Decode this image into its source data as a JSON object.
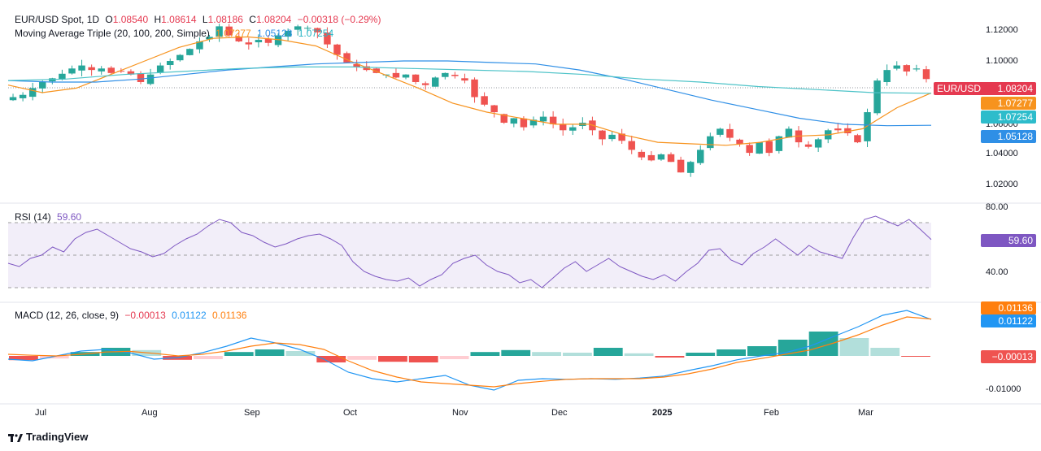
{
  "legend": {
    "symbol": "EUR/USD Spot, 1D",
    "o_label": "O",
    "o_val": "1.08540",
    "h_label": "H",
    "h_val": "1.08614",
    "l_label": "L",
    "l_val": "1.08186",
    "c_label": "C",
    "c_val": "1.08204",
    "change": "−0.00318 (−0.29%)",
    "ma_title": "Moving Average Triple (20, 100, 200, Simple)",
    "ma20_val": "1.07277",
    "ma100_val": "1.05128",
    "ma200_val": "1.07254",
    "rsi_title": "RSI (14)",
    "rsi_val": "59.60",
    "macd_title": "MACD (12, 26, close, 9)",
    "macd_hist_val": "−0.00013",
    "macd_line_val": "0.01122",
    "macd_signal_val": "0.01136"
  },
  "price_tags": {
    "symbol_tag": "EUR/USD",
    "close": "1.08204",
    "ma20": "1.07277",
    "ma200": "1.07254",
    "ma100": "1.05128",
    "rsi": "59.60",
    "macd_signal": "0.01136",
    "macd_line": "0.01122",
    "macd_hist": "−0.00013"
  },
  "colors": {
    "up": "#26a69a",
    "down": "#ef5350",
    "ma20": "#f7931e",
    "ma100": "#2f8fe6",
    "ma200": "#4ec3c8",
    "rsi": "#7e57c2",
    "macd": "#2196f3",
    "signal": "#ff7f0e",
    "hist_up_strong": "#26a69a",
    "hist_up_weak": "#b2dfdb",
    "hist_dn_strong": "#ef5350",
    "hist_dn_weak": "#ffcdd2"
  },
  "footer": {
    "brand": "TradingView"
  },
  "chart_data": [
    {
      "type": "candlestick",
      "title": "EUR/USD Spot, 1D",
      "ylim": [
        1.005,
        1.128
      ],
      "yticks": [
        "1.12000",
        "1.10000",
        "1.06000",
        "1.04000",
        "1.02000"
      ],
      "x_ticks": [
        "Jul",
        "Aug",
        "Sep",
        "Oct",
        "Nov",
        "Dec",
        "2025",
        "Feb",
        "Mar"
      ],
      "last_close": 1.08204,
      "close_path": [
        1.07,
        1.0715,
        1.076,
        1.08,
        1.0825,
        1.0855,
        1.089,
        1.091,
        1.088,
        1.089,
        1.086,
        1.087,
        1.085,
        1.08,
        1.085,
        1.091,
        1.094,
        1.098,
        1.102,
        1.107,
        1.11,
        1.117,
        1.111,
        1.107,
        1.105,
        1.108,
        1.106,
        1.111,
        1.114,
        1.117,
        1.116,
        1.113,
        1.105,
        1.098,
        1.093,
        1.09,
        1.088,
        1.086,
        1.085,
        1.083,
        1.085,
        1.08,
        1.078,
        1.083,
        1.086,
        1.084,
        1.081,
        1.07,
        1.065,
        1.06,
        1.053,
        1.056,
        1.05,
        1.055,
        1.057,
        1.052,
        1.048,
        1.05,
        1.053,
        1.048,
        1.042,
        1.045,
        1.041,
        1.035,
        1.03,
        1.028,
        1.032,
        1.027,
        1.02,
        1.027,
        1.035,
        1.044,
        1.049,
        1.043,
        1.039,
        1.033,
        1.04,
        1.033,
        1.044,
        1.049,
        1.04,
        1.037,
        1.042,
        1.048,
        1.048,
        1.046,
        1.04,
        1.06,
        1.081,
        1.088,
        1.091,
        1.087,
        1.089,
        1.082
      ],
      "series": [
        {
          "name": "MA 20",
          "values": [
            1.078,
            1.073,
            1.076,
            1.085,
            1.094,
            1.103,
            1.109,
            1.11,
            1.108,
            1.104,
            1.094,
            1.085,
            1.076,
            1.066,
            1.06,
            1.056,
            1.052,
            1.052,
            1.045,
            1.04,
            1.039,
            1.038,
            1.04,
            1.044,
            1.045,
            1.049,
            1.063,
            1.07277
          ]
        },
        {
          "name": "MA 100",
          "values": [
            1.081,
            1.08,
            1.08,
            1.082,
            1.085,
            1.088,
            1.09,
            1.092,
            1.093,
            1.094,
            1.094,
            1.093,
            1.092,
            1.088,
            1.082,
            1.075,
            1.068,
            1.062,
            1.056,
            1.052,
            1.051,
            1.05128
          ]
        },
        {
          "name": "MA 200",
          "values": [
            1.081,
            1.082,
            1.085,
            1.087,
            1.089,
            1.09,
            1.09,
            1.089,
            1.088,
            1.087,
            1.085,
            1.082,
            1.08,
            1.077,
            1.075,
            1.073,
            1.07254
          ]
        }
      ]
    },
    {
      "type": "line",
      "title": "RSI (14)",
      "ylim": [
        22,
        82
      ],
      "yticks": [
        "80.00",
        "40.00"
      ],
      "levels": [
        70,
        50,
        30
      ],
      "series": [
        {
          "name": "RSI",
          "values": [
            45,
            43,
            48,
            50,
            55,
            52,
            60,
            64,
            66,
            62,
            58,
            54,
            52,
            49,
            51,
            56,
            60,
            63,
            68,
            72,
            70,
            64,
            62,
            58,
            55,
            57,
            60,
            62,
            63,
            60,
            56,
            46,
            40,
            37,
            35,
            34,
            36,
            31,
            35,
            38,
            45,
            48,
            50,
            44,
            40,
            38,
            33,
            35,
            30,
            36,
            42,
            46,
            40,
            44,
            48,
            43,
            40,
            37,
            35,
            38,
            34,
            40,
            45,
            53,
            54,
            47,
            44,
            51,
            55,
            60,
            55,
            50,
            56,
            52,
            50,
            48,
            61,
            72,
            74,
            71,
            68,
            72,
            66,
            59.6
          ]
        }
      ]
    },
    {
      "type": "line",
      "title": "MACD (12, 26, close, 9)",
      "ylim": [
        -0.0125,
        0.0175
      ],
      "yticks": [
        "-0.01000"
      ],
      "series": [
        {
          "name": "MACD",
          "values": [
            -0.001,
            -0.0015,
            0.0,
            0.0015,
            0.002,
            0.001,
            -0.001,
            -0.0005,
            0.001,
            0.003,
            0.0055,
            0.004,
            0.002,
            -0.001,
            -0.005,
            -0.007,
            -0.008,
            -0.007,
            -0.006,
            -0.009,
            -0.0105,
            -0.0075,
            -0.007,
            -0.0072,
            -0.007,
            -0.0072,
            -0.0068,
            -0.0062,
            -0.0045,
            -0.003,
            -0.0012,
            0.0,
            0.001,
            0.003,
            0.006,
            0.009,
            0.0125,
            0.014,
            0.01122
          ]
        },
        {
          "name": "Signal",
          "values": [
            0.0005,
            0.0002,
            0.0,
            0.0005,
            0.0012,
            0.0014,
            0.0008,
            0.0,
            0.0005,
            0.0015,
            0.003,
            0.004,
            0.0035,
            0.002,
            -0.0015,
            -0.0045,
            -0.0065,
            -0.008,
            -0.0085,
            -0.009,
            -0.0095,
            -0.0085,
            -0.0078,
            -0.0072,
            -0.007,
            -0.007,
            -0.007,
            -0.0065,
            -0.0055,
            -0.004,
            -0.002,
            -0.0008,
            0.0005,
            0.0018,
            0.004,
            0.0065,
            0.0095,
            0.012,
            0.01136
          ]
        },
        {
          "name": "Histogram",
          "values": [
            -0.0013,
            -0.0008,
            0.0012,
            0.0025,
            0.0018,
            -0.0012,
            -0.001,
            0.0012,
            0.002,
            0.0015,
            -0.002,
            -0.0012,
            -0.0018,
            -0.002,
            -0.001,
            0.0012,
            0.0018,
            0.0012,
            0.001,
            0.0025,
            0.0008,
            -0.0005,
            0.001,
            0.002,
            0.003,
            0.005,
            0.0075,
            0.0055,
            0.0025,
            -0.00013
          ]
        }
      ]
    }
  ]
}
